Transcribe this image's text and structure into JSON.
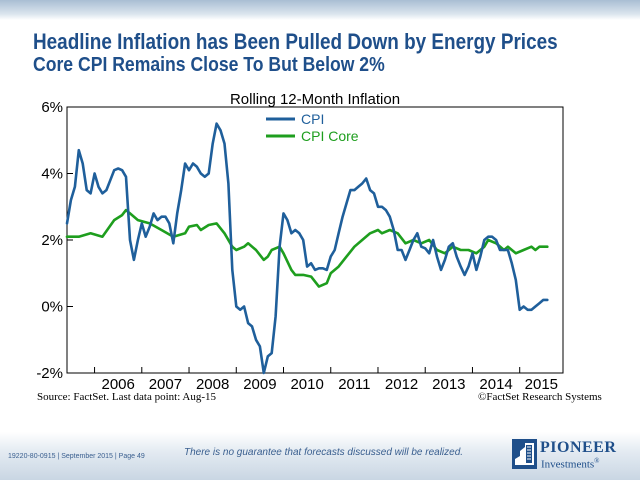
{
  "slide": {
    "headline": "Headline Inflation has Been Pulled Down by Energy Prices",
    "subhead": "Core CPI Remains Close To But Below 2%",
    "source": "Source: FactSet. Last data point: Aug-15",
    "copyright": "©FactSet Research Systems",
    "disclaimer": "There is no guarantee that forecasts discussed will be realized.",
    "footer_ref": "19220-80-0915 | September 2015 | Page 49",
    "logo_name": "PIONEER",
    "logo_sub": "Investments",
    "logo_mark": "®"
  },
  "chart_data": {
    "type": "line",
    "title": "Rolling 12-Month Inflation",
    "xlabel": "",
    "ylabel": "",
    "x_ticks": [
      "2006",
      "2007",
      "2008",
      "2009",
      "2010",
      "2011",
      "2012",
      "2013",
      "2014",
      "2015"
    ],
    "y_ticks": [
      "6%",
      "4%",
      "2%",
      "0%",
      "-2%"
    ],
    "ylim": [
      -2,
      6
    ],
    "xlim": [
      "2005-06",
      "2015-12"
    ],
    "grid": false,
    "legend": "top-center",
    "colors": {
      "CPI": "#1f5f9b",
      "CPI Core": "#1e9e1e"
    },
    "series": [
      {
        "name": "CPI",
        "points": [
          [
            "2005-06",
            2.5
          ],
          [
            "2005-07",
            3.2
          ],
          [
            "2005-08",
            3.6
          ],
          [
            "2005-09",
            4.7
          ],
          [
            "2005-10",
            4.3
          ],
          [
            "2005-11",
            3.5
          ],
          [
            "2005-12",
            3.4
          ],
          [
            "2006-01",
            4.0
          ],
          [
            "2006-02",
            3.6
          ],
          [
            "2006-03",
            3.4
          ],
          [
            "2006-04",
            3.5
          ],
          [
            "2006-05",
            3.8
          ],
          [
            "2006-06",
            4.1
          ],
          [
            "2006-07",
            4.15
          ],
          [
            "2006-08",
            4.1
          ],
          [
            "2006-09",
            3.9
          ],
          [
            "2006-10",
            2.0
          ],
          [
            "2006-11",
            1.4
          ],
          [
            "2006-12",
            2.0
          ],
          [
            "2007-01",
            2.5
          ],
          [
            "2007-02",
            2.1
          ],
          [
            "2007-03",
            2.4
          ],
          [
            "2007-04",
            2.8
          ],
          [
            "2007-05",
            2.6
          ],
          [
            "2007-06",
            2.7
          ],
          [
            "2007-07",
            2.7
          ],
          [
            "2007-08",
            2.5
          ],
          [
            "2007-09",
            1.9
          ],
          [
            "2007-10",
            2.8
          ],
          [
            "2007-11",
            3.5
          ],
          [
            "2007-12",
            4.3
          ],
          [
            "2008-01",
            4.1
          ],
          [
            "2008-02",
            4.3
          ],
          [
            "2008-03",
            4.2
          ],
          [
            "2008-04",
            4.0
          ],
          [
            "2008-05",
            3.9
          ],
          [
            "2008-06",
            4.0
          ],
          [
            "2008-07",
            4.9
          ],
          [
            "2008-08",
            5.5
          ],
          [
            "2008-09",
            5.3
          ],
          [
            "2008-10",
            4.9
          ],
          [
            "2008-11",
            3.7
          ],
          [
            "2008-12",
            1.1
          ],
          [
            "2009-01",
            0.0
          ],
          [
            "2009-02",
            -0.1
          ],
          [
            "2009-03",
            0.0
          ],
          [
            "2009-04",
            -0.5
          ],
          [
            "2009-05",
            -0.6
          ],
          [
            "2009-06",
            -1.0
          ],
          [
            "2009-07",
            -1.2
          ],
          [
            "2009-08",
            -2.0
          ],
          [
            "2009-09",
            -1.5
          ],
          [
            "2009-10",
            -1.4
          ],
          [
            "2009-11",
            -0.3
          ],
          [
            "2009-12",
            1.8
          ],
          [
            "2010-01",
            2.8
          ],
          [
            "2010-02",
            2.6
          ],
          [
            "2010-03",
            2.2
          ],
          [
            "2010-04",
            2.3
          ],
          [
            "2010-05",
            2.2
          ],
          [
            "2010-06",
            2.0
          ],
          [
            "2010-07",
            1.2
          ],
          [
            "2010-08",
            1.3
          ],
          [
            "2010-09",
            1.1
          ],
          [
            "2010-10",
            1.15
          ],
          [
            "2010-11",
            1.15
          ],
          [
            "2010-12",
            1.1
          ],
          [
            "2011-01",
            1.5
          ],
          [
            "2011-02",
            1.7
          ],
          [
            "2011-03",
            2.2
          ],
          [
            "2011-04",
            2.7
          ],
          [
            "2011-05",
            3.1
          ],
          [
            "2011-06",
            3.5
          ],
          [
            "2011-07",
            3.5
          ],
          [
            "2011-08",
            3.6
          ],
          [
            "2011-09",
            3.7
          ],
          [
            "2011-10",
            3.85
          ],
          [
            "2011-11",
            3.5
          ],
          [
            "2011-12",
            3.4
          ],
          [
            "2012-01",
            3.0
          ],
          [
            "2012-02",
            3.0
          ],
          [
            "2012-03",
            2.9
          ],
          [
            "2012-04",
            2.7
          ],
          [
            "2012-05",
            2.3
          ],
          [
            "2012-06",
            1.7
          ],
          [
            "2012-07",
            1.7
          ],
          [
            "2012-08",
            1.4
          ],
          [
            "2012-09",
            1.7
          ],
          [
            "2012-10",
            2.0
          ],
          [
            "2012-11",
            2.2
          ],
          [
            "2012-12",
            1.8
          ],
          [
            "2013-01",
            1.75
          ],
          [
            "2013-02",
            1.6
          ],
          [
            "2013-03",
            2.0
          ],
          [
            "2013-04",
            1.5
          ],
          [
            "2013-05",
            1.1
          ],
          [
            "2013-06",
            1.4
          ],
          [
            "2013-07",
            1.8
          ],
          [
            "2013-08",
            1.9
          ],
          [
            "2013-09",
            1.5
          ],
          [
            "2013-10",
            1.2
          ],
          [
            "2013-11",
            0.95
          ],
          [
            "2013-12",
            1.2
          ],
          [
            "2014-01",
            1.6
          ],
          [
            "2014-02",
            1.1
          ],
          [
            "2014-03",
            1.5
          ],
          [
            "2014-04",
            2.0
          ],
          [
            "2014-05",
            2.1
          ],
          [
            "2014-06",
            2.1
          ],
          [
            "2014-07",
            2.0
          ],
          [
            "2014-08",
            1.7
          ],
          [
            "2014-09",
            1.7
          ],
          [
            "2014-10",
            1.7
          ],
          [
            "2014-11",
            1.3
          ],
          [
            "2014-12",
            0.8
          ],
          [
            "2015-01",
            -0.1
          ],
          [
            "2015-02",
            0.0
          ],
          [
            "2015-03",
            -0.1
          ],
          [
            "2015-04",
            -0.1
          ],
          [
            "2015-05",
            0.0
          ],
          [
            "2015-06",
            0.1
          ],
          [
            "2015-07",
            0.2
          ],
          [
            "2015-08",
            0.2
          ]
        ]
      },
      {
        "name": "CPI Core",
        "points": [
          [
            "2005-06",
            2.1
          ],
          [
            "2005-09",
            2.1
          ],
          [
            "2005-12",
            2.2
          ],
          [
            "2006-03",
            2.1
          ],
          [
            "2006-06",
            2.6
          ],
          [
            "2006-08",
            2.75
          ],
          [
            "2006-09",
            2.9
          ],
          [
            "2006-10",
            2.8
          ],
          [
            "2006-12",
            2.6
          ],
          [
            "2007-03",
            2.5
          ],
          [
            "2007-06",
            2.3
          ],
          [
            "2007-09",
            2.1
          ],
          [
            "2007-12",
            2.2
          ],
          [
            "2008-01",
            2.4
          ],
          [
            "2008-03",
            2.45
          ],
          [
            "2008-04",
            2.3
          ],
          [
            "2008-06",
            2.45
          ],
          [
            "2008-08",
            2.5
          ],
          [
            "2008-10",
            2.2
          ],
          [
            "2008-12",
            1.8
          ],
          [
            "2009-01",
            1.7
          ],
          [
            "2009-03",
            1.8
          ],
          [
            "2009-04",
            1.9
          ],
          [
            "2009-06",
            1.7
          ],
          [
            "2009-08",
            1.4
          ],
          [
            "2009-09",
            1.5
          ],
          [
            "2009-10",
            1.7
          ],
          [
            "2009-12",
            1.8
          ],
          [
            "2010-01",
            1.6
          ],
          [
            "2010-03",
            1.1
          ],
          [
            "2010-04",
            0.95
          ],
          [
            "2010-06",
            0.95
          ],
          [
            "2010-08",
            0.9
          ],
          [
            "2010-10",
            0.6
          ],
          [
            "2010-12",
            0.7
          ],
          [
            "2011-01",
            1.0
          ],
          [
            "2011-03",
            1.2
          ],
          [
            "2011-05",
            1.5
          ],
          [
            "2011-07",
            1.8
          ],
          [
            "2011-09",
            2.0
          ],
          [
            "2011-11",
            2.2
          ],
          [
            "2012-01",
            2.3
          ],
          [
            "2012-02",
            2.2
          ],
          [
            "2012-04",
            2.3
          ],
          [
            "2012-06",
            2.2
          ],
          [
            "2012-08",
            1.9
          ],
          [
            "2012-10",
            2.0
          ],
          [
            "2012-12",
            1.9
          ],
          [
            "2013-02",
            2.0
          ],
          [
            "2013-04",
            1.7
          ],
          [
            "2013-06",
            1.6
          ],
          [
            "2013-08",
            1.8
          ],
          [
            "2013-10",
            1.7
          ],
          [
            "2013-12",
            1.7
          ],
          [
            "2014-02",
            1.6
          ],
          [
            "2014-04",
            1.8
          ],
          [
            "2014-05",
            2.0
          ],
          [
            "2014-07",
            1.9
          ],
          [
            "2014-09",
            1.7
          ],
          [
            "2014-10",
            1.8
          ],
          [
            "2014-12",
            1.6
          ],
          [
            "2015-02",
            1.7
          ],
          [
            "2015-04",
            1.8
          ],
          [
            "2015-05",
            1.7
          ],
          [
            "2015-06",
            1.8
          ],
          [
            "2015-08",
            1.8
          ]
        ]
      }
    ]
  }
}
